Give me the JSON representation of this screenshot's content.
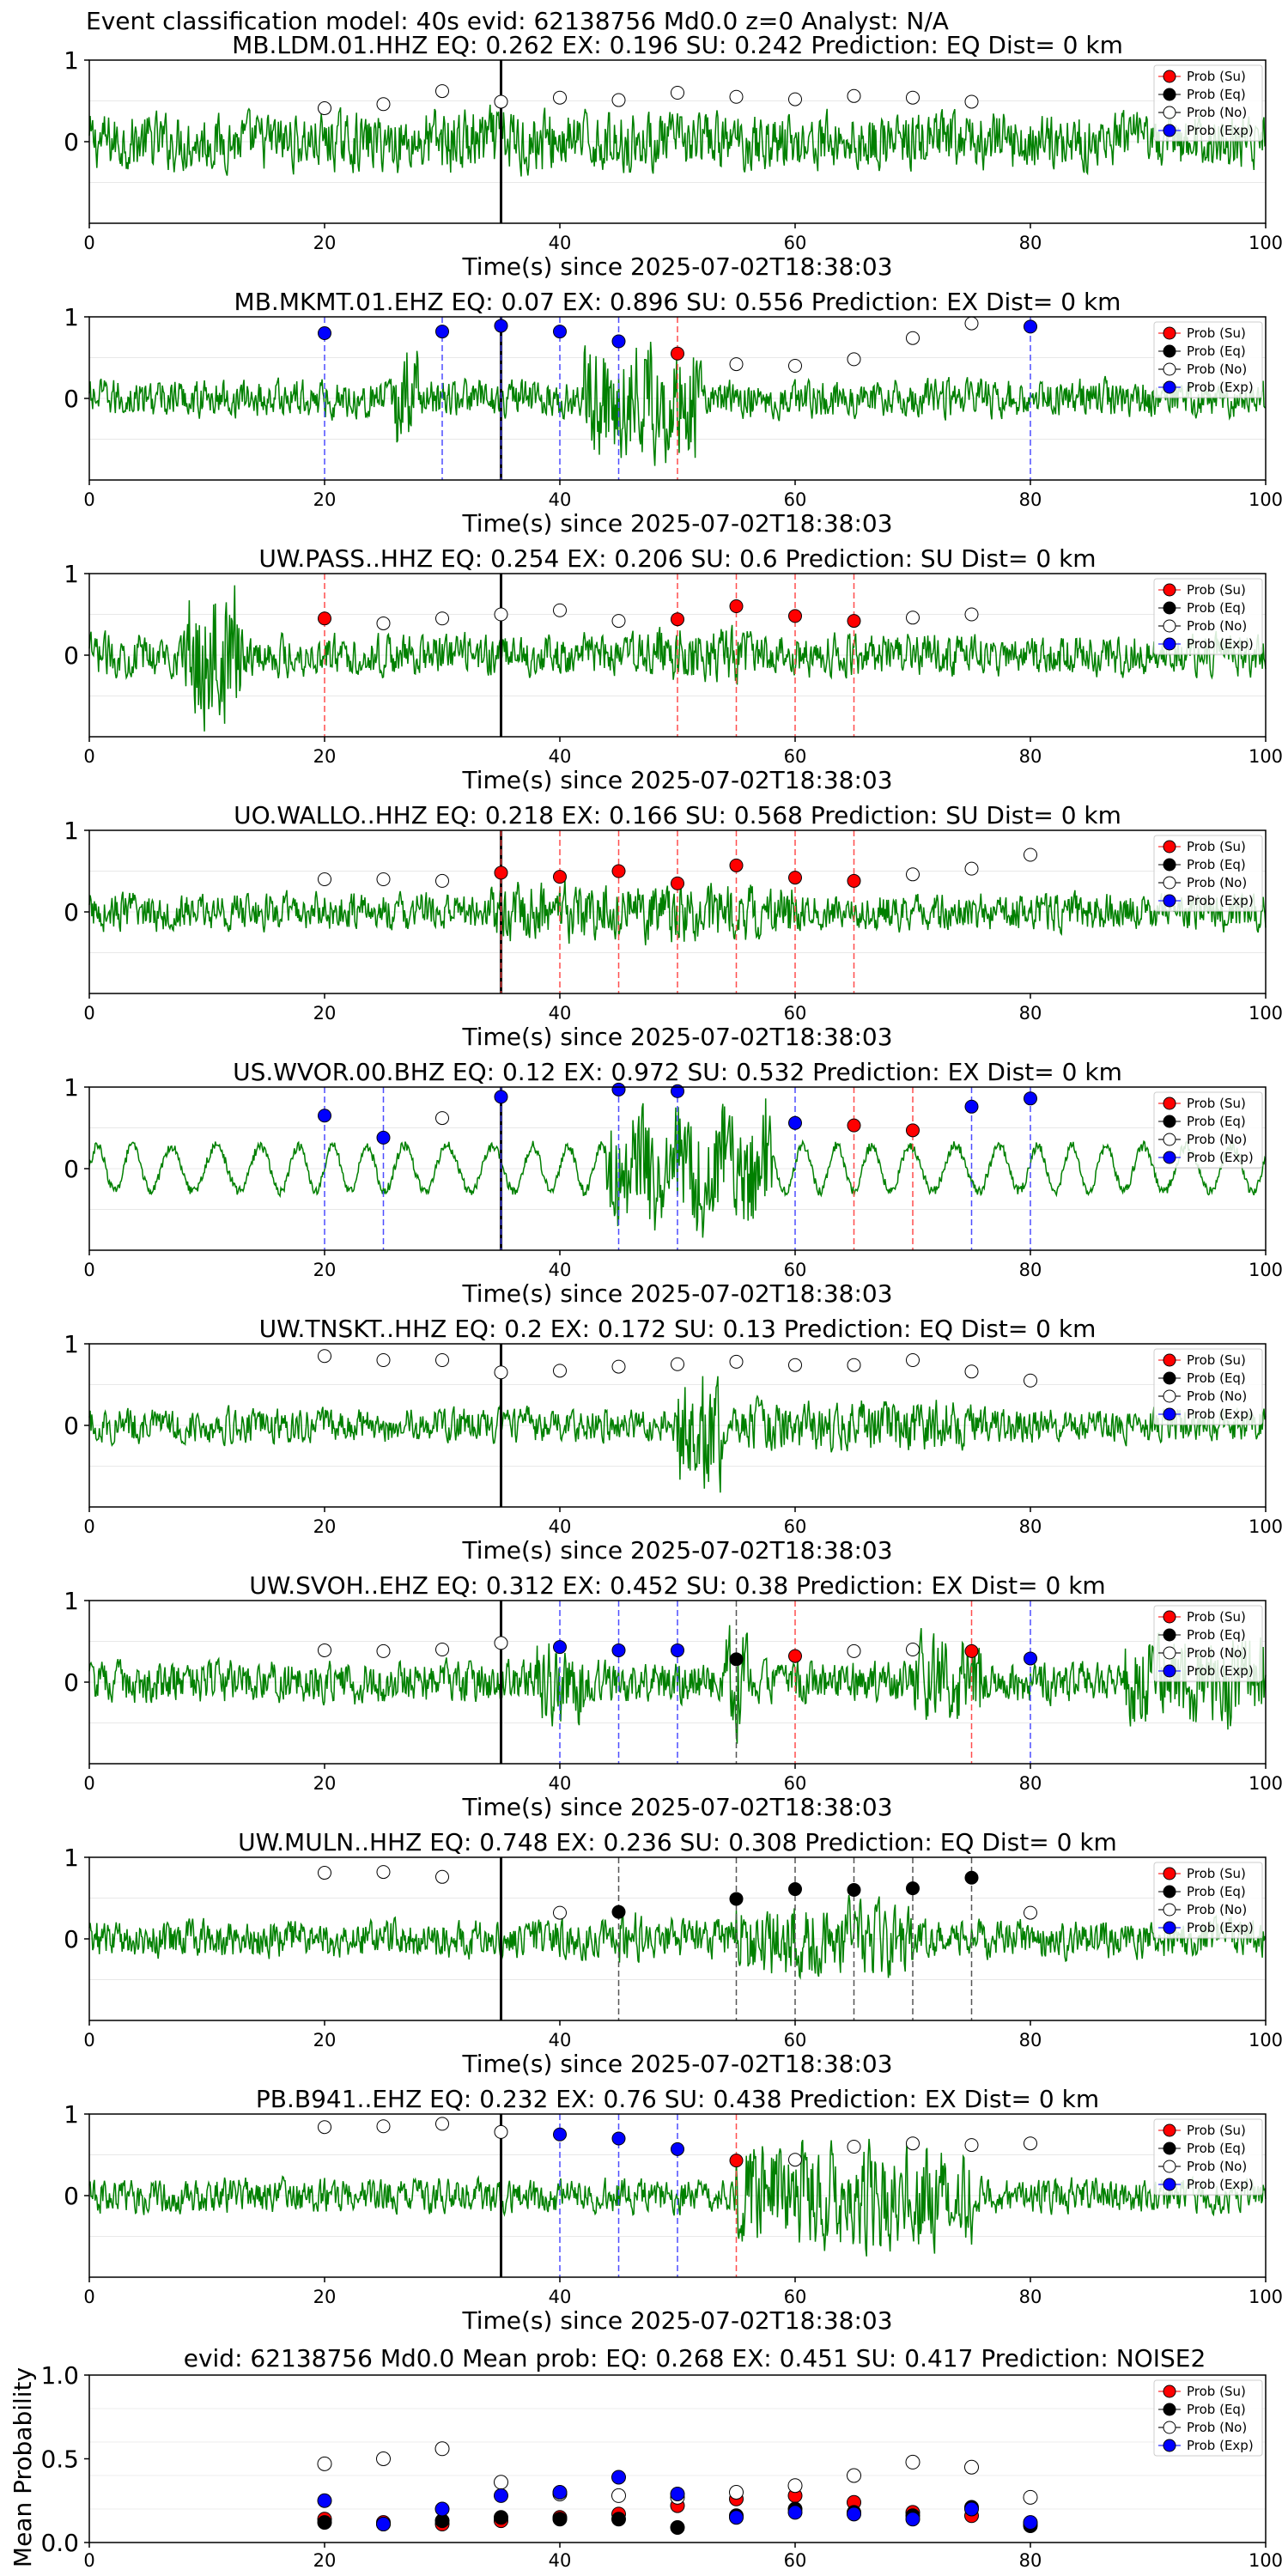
{
  "figure_title": "Event classification model: 40s evid: 62138756 Md0.0 z=0 Analyst: N/A",
  "legend": [
    "Prob (Su)",
    "Prob (Eq)",
    "Prob (No)",
    "Prob (Exp)"
  ],
  "colors": {
    "su": "#ff0000",
    "eq": "#000000",
    "no": "#ffffff",
    "exp": "#0000ff",
    "trace": "#008000",
    "su_line": "#ff4d4d",
    "exp_line": "#4d4dff",
    "eq_line": "#555555"
  },
  "chart_data": [
    {
      "type": "line",
      "title": "MB.LDM.01.HHZ   EQ: 0.262  EX: 0.196  SU: 0.242   Prediction: EQ    Dist= 0 km",
      "xlabel": "Time(s) since 2025-07-02T18:38:03",
      "xlim": [
        0,
        100
      ],
      "ylim": [
        -1,
        1
      ],
      "xticks": [
        "0",
        "20",
        "40",
        "60",
        "80",
        "100"
      ],
      "yticks": [
        "1",
        "0"
      ],
      "pick_line_x": 35,
      "windows_x": [
        20,
        25,
        30,
        35,
        40,
        45,
        50,
        55,
        60,
        65,
        70,
        75
      ],
      "class": [
        "no",
        "no",
        "no",
        "no",
        "no",
        "no",
        "no",
        "no",
        "no",
        "no",
        "no",
        "no"
      ],
      "prob": [
        0.41,
        0.46,
        0.62,
        0.49,
        0.54,
        0.51,
        0.6,
        0.55,
        0.52,
        0.56,
        0.54,
        0.49
      ]
    },
    {
      "type": "line",
      "title": "MB.MKMT.01.EHZ   EQ: 0.07  EX: 0.896  SU: 0.556   Prediction: EX    Dist= 0 km",
      "xlabel": "Time(s) since 2025-07-02T18:38:03",
      "xlim": [
        0,
        100
      ],
      "ylim": [
        -1,
        1
      ],
      "xticks": [
        "0",
        "20",
        "40",
        "60",
        "80",
        "100"
      ],
      "yticks": [
        "1",
        "0"
      ],
      "pick_line_x": 35,
      "windows_x": [
        20,
        30,
        35,
        40,
        45,
        50,
        55,
        60,
        65,
        70,
        75,
        80
      ],
      "class": [
        "exp",
        "exp",
        "exp",
        "exp",
        "exp",
        "su",
        "no",
        "no",
        "no",
        "no",
        "no",
        "exp"
      ],
      "prob": [
        0.8,
        0.82,
        0.89,
        0.82,
        0.7,
        0.55,
        0.42,
        0.4,
        0.48,
        0.74,
        0.92,
        0.88
      ]
    },
    {
      "type": "line",
      "title": "UW.PASS..HHZ   EQ: 0.254  EX: 0.206  SU: 0.6   Prediction: SU    Dist= 0 km",
      "xlabel": "Time(s) since 2025-07-02T18:38:03",
      "xlim": [
        0,
        100
      ],
      "ylim": [
        -1,
        1
      ],
      "xticks": [
        "0",
        "20",
        "40",
        "60",
        "80",
        "100"
      ],
      "yticks": [
        "1",
        "0"
      ],
      "pick_line_x": 35,
      "windows_x": [
        20,
        25,
        30,
        35,
        40,
        45,
        50,
        55,
        60,
        65,
        70,
        75
      ],
      "class": [
        "su",
        "no",
        "no",
        "no",
        "no",
        "no",
        "su",
        "su",
        "su",
        "su",
        "no",
        "no"
      ],
      "prob": [
        0.45,
        0.39,
        0.45,
        0.5,
        0.55,
        0.42,
        0.44,
        0.6,
        0.48,
        0.42,
        0.46,
        0.5
      ]
    },
    {
      "type": "line",
      "title": "UO.WALLO..HHZ   EQ: 0.218  EX: 0.166  SU: 0.568   Prediction: SU    Dist= 0 km",
      "xlabel": "Time(s) since 2025-07-02T18:38:03",
      "xlim": [
        0,
        100
      ],
      "ylim": [
        -1,
        1
      ],
      "xticks": [
        "0",
        "20",
        "40",
        "60",
        "80",
        "100"
      ],
      "yticks": [
        "1",
        "0"
      ],
      "pick_line_x": 35,
      "windows_x": [
        20,
        25,
        30,
        35,
        40,
        45,
        50,
        55,
        60,
        65,
        70,
        75,
        80
      ],
      "class": [
        "no",
        "no",
        "no",
        "su",
        "su",
        "su",
        "su",
        "su",
        "su",
        "su",
        "no",
        "no",
        "no"
      ],
      "prob": [
        0.4,
        0.4,
        0.38,
        0.48,
        0.43,
        0.5,
        0.35,
        0.57,
        0.42,
        0.38,
        0.46,
        0.53,
        0.7
      ]
    },
    {
      "type": "line",
      "title": "US.WVOR.00.BHZ   EQ: 0.12  EX: 0.972  SU: 0.532   Prediction: EX    Dist= 0 km",
      "xlabel": "Time(s) since 2025-07-02T18:38:03",
      "xlim": [
        0,
        100
      ],
      "ylim": [
        -1,
        1
      ],
      "xticks": [
        "0",
        "20",
        "40",
        "60",
        "80",
        "100"
      ],
      "yticks": [
        "1",
        "0"
      ],
      "pick_line_x": 35,
      "windows_x": [
        20,
        25,
        30,
        35,
        45,
        50,
        60,
        65,
        70,
        75,
        80
      ],
      "class": [
        "exp",
        "exp",
        "no",
        "exp",
        "exp",
        "exp",
        "exp",
        "su",
        "su",
        "exp",
        "exp"
      ],
      "prob": [
        0.65,
        0.38,
        0.62,
        0.88,
        0.97,
        0.95,
        0.56,
        0.53,
        0.47,
        0.76,
        0.86
      ]
    },
    {
      "type": "line",
      "title": "UW.TNSKT..HHZ   EQ: 0.2  EX: 0.172  SU: 0.13   Prediction: EQ    Dist= 0 km",
      "xlabel": "Time(s) since 2025-07-02T18:38:03",
      "xlim": [
        0,
        100
      ],
      "ylim": [
        -1,
        1
      ],
      "xticks": [
        "0",
        "20",
        "40",
        "60",
        "80",
        "100"
      ],
      "yticks": [
        "1",
        "0"
      ],
      "pick_line_x": 35,
      "windows_x": [
        20,
        25,
        30,
        35,
        40,
        45,
        50,
        55,
        60,
        65,
        70,
        75,
        80
      ],
      "class": [
        "no",
        "no",
        "no",
        "no",
        "no",
        "no",
        "no",
        "no",
        "no",
        "no",
        "no",
        "no",
        "no"
      ],
      "prob": [
        0.85,
        0.8,
        0.8,
        0.65,
        0.67,
        0.72,
        0.75,
        0.78,
        0.74,
        0.74,
        0.8,
        0.66,
        0.55
      ]
    },
    {
      "type": "line",
      "title": "UW.SVOH..EHZ   EQ: 0.312  EX: 0.452  SU: 0.38   Prediction: EX    Dist= 0 km",
      "xlabel": "Time(s) since 2025-07-02T18:38:03",
      "xlim": [
        0,
        100
      ],
      "ylim": [
        -1,
        1
      ],
      "xticks": [
        "0",
        "20",
        "40",
        "60",
        "80",
        "100"
      ],
      "yticks": [
        "1",
        "0"
      ],
      "pick_line_x": 35,
      "windows_x": [
        20,
        25,
        30,
        35,
        40,
        45,
        50,
        55,
        60,
        65,
        70,
        75,
        80
      ],
      "class": [
        "no",
        "no",
        "no",
        "no",
        "exp",
        "exp",
        "exp",
        "eq",
        "su",
        "no",
        "no",
        "su",
        "exp"
      ],
      "prob": [
        0.39,
        0.38,
        0.4,
        0.48,
        0.43,
        0.39,
        0.39,
        0.28,
        0.32,
        0.38,
        0.4,
        0.38,
        0.29
      ]
    },
    {
      "type": "line",
      "title": "UW.MULN..HHZ   EQ: 0.748  EX: 0.236  SU: 0.308   Prediction: EQ    Dist= 0 km",
      "xlabel": "Time(s) since 2025-07-02T18:38:03",
      "xlim": [
        0,
        100
      ],
      "ylim": [
        -1,
        1
      ],
      "xticks": [
        "0",
        "20",
        "40",
        "60",
        "80",
        "100"
      ],
      "yticks": [
        "1",
        "0"
      ],
      "pick_line_x": 35,
      "windows_x": [
        20,
        25,
        30,
        40,
        45,
        55,
        60,
        65,
        70,
        75,
        80
      ],
      "class": [
        "no",
        "no",
        "no",
        "no",
        "eq",
        "eq",
        "eq",
        "eq",
        "eq",
        "eq",
        "no"
      ],
      "prob": [
        0.81,
        0.82,
        0.76,
        0.32,
        0.33,
        0.49,
        0.61,
        0.6,
        0.62,
        0.75,
        0.32
      ]
    },
    {
      "type": "line",
      "title": "PB.B941..EHZ   EQ: 0.232  EX: 0.76  SU: 0.438   Prediction: EX    Dist= 0 km",
      "xlabel": "Time(s) since 2025-07-02T18:38:03",
      "xlim": [
        0,
        100
      ],
      "ylim": [
        -1,
        1
      ],
      "xticks": [
        "0",
        "20",
        "40",
        "60",
        "80",
        "100"
      ],
      "yticks": [
        "1",
        "0"
      ],
      "pick_line_x": 35,
      "windows_x": [
        20,
        25,
        30,
        35,
        40,
        45,
        50,
        55,
        60,
        65,
        70,
        75,
        80
      ],
      "class": [
        "no",
        "no",
        "no",
        "no",
        "exp",
        "exp",
        "exp",
        "su",
        "no",
        "no",
        "no",
        "no",
        "no"
      ],
      "prob": [
        0.84,
        0.85,
        0.88,
        0.78,
        0.75,
        0.7,
        0.57,
        0.43,
        0.44,
        0.6,
        0.64,
        0.62,
        0.64
      ]
    },
    {
      "type": "scatter",
      "title": "evid: 62138756  Md0.0   Mean prob:    EQ: 0.268  EX: 0.451  SU: 0.417   Prediction: NOISE2",
      "ylabel": "Mean Probability",
      "xlim": [
        0,
        100
      ],
      "ylim": [
        0,
        1
      ],
      "xticks": [
        "0",
        "20",
        "40",
        "60",
        "80",
        "100"
      ],
      "yticks": [
        "1.0",
        "0.5",
        "0.0"
      ],
      "x": [
        20,
        25,
        30,
        35,
        40,
        45,
        50,
        55,
        60,
        65,
        70,
        75,
        80
      ],
      "series": [
        {
          "name": "Prob (Su)",
          "color": "#ff0000",
          "values": [
            0.14,
            0.12,
            0.11,
            0.13,
            0.15,
            0.17,
            0.22,
            0.26,
            0.28,
            0.24,
            0.18,
            0.16,
            0.11
          ]
        },
        {
          "name": "Prob (Eq)",
          "color": "#000000",
          "values": [
            0.12,
            0.11,
            0.13,
            0.15,
            0.14,
            0.14,
            0.09,
            0.16,
            0.2,
            0.18,
            0.16,
            0.21,
            0.1
          ]
        },
        {
          "name": "Prob (No)",
          "color": "#ffffff",
          "values": [
            0.47,
            0.5,
            0.56,
            0.36,
            0.29,
            0.28,
            0.27,
            0.3,
            0.34,
            0.4,
            0.48,
            0.45,
            0.27
          ]
        },
        {
          "name": "Prob (Exp)",
          "color": "#0000ff",
          "values": [
            0.25,
            0.11,
            0.2,
            0.28,
            0.3,
            0.39,
            0.29,
            0.15,
            0.18,
            0.17,
            0.14,
            0.2,
            0.12
          ]
        }
      ]
    }
  ]
}
